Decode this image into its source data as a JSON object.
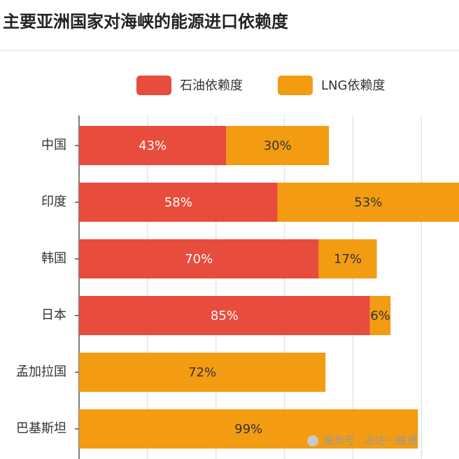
{
  "chart_data": {
    "type": "stacked-hbar",
    "title": "主要亚洲国家对海峡的能源进口依赖度",
    "categories": [
      "中国",
      "印度",
      "韩国",
      "日本",
      "孟加拉国",
      "巴基斯坦"
    ],
    "series": [
      {
        "name": "石油依赖度",
        "color": "#e84c3d",
        "values": [
          43,
          58,
          70,
          85,
          null,
          null
        ],
        "value_labels": [
          "43%",
          "58%",
          "70%",
          "85%",
          null,
          null
        ]
      },
      {
        "name": "LNG依赖度",
        "color": "#f39c12",
        "values": [
          30,
          53,
          17,
          6,
          72,
          99
        ],
        "value_labels": [
          "30%",
          "53%",
          "17%",
          "6%",
          "72%",
          "99%"
        ]
      }
    ],
    "xlim": [
      0,
      111
    ],
    "xticks": [
      0,
      20,
      40,
      60,
      80,
      100
    ],
    "grid": true,
    "watermark": "服务号 · 必达一路通"
  }
}
